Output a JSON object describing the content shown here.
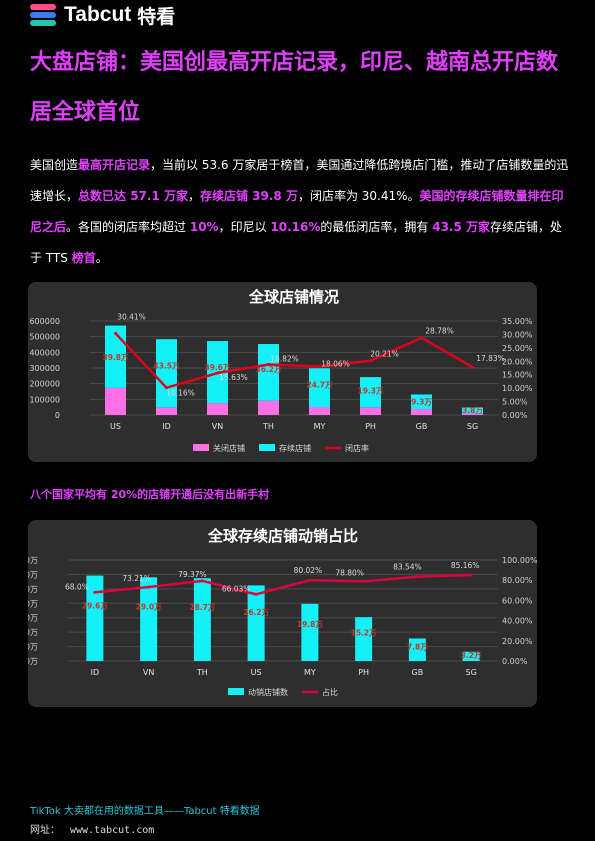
{
  "brand": {
    "name": "Tabcut",
    "cn": "特看",
    "colors": [
      "#ff4d8b",
      "#3d7cf0",
      "#22c7a9"
    ]
  },
  "headline": "大盘店铺：美国创最高开店记录，印尼、越南总开店数居全球首位",
  "intro": [
    {
      "t": "美国创造",
      "h": false
    },
    {
      "t": "最高开店记录",
      "h": true
    },
    {
      "t": "，当前以 53.6 万家居于榜首，美国通过降低跨境店门槛，推动了店铺数量的迅速增长，",
      "h": false
    },
    {
      "t": "总数已达 57.1 万家",
      "h": true
    },
    {
      "t": "，",
      "h": false
    },
    {
      "t": "存续店铺 39.8 万",
      "h": true
    },
    {
      "t": "，闭店率为 30.41%。",
      "h": false
    },
    {
      "t": "美国的存续店铺数量排在印尼之后",
      "h": true
    },
    {
      "t": "。各国的闭店率均超过 ",
      "h": false
    },
    {
      "t": "10%",
      "h": true
    },
    {
      "t": "，印尼以 ",
      "h": false
    },
    {
      "t": "10.16%",
      "h": true
    },
    {
      "t": "的最低闭店率，拥有 ",
      "h": false
    },
    {
      "t": "43.5 万家",
      "h": true
    },
    {
      "t": "存续店铺，处于 TTS ",
      "h": false
    },
    {
      "t": "榜首",
      "h": true
    },
    {
      "t": "。",
      "h": false
    }
  ],
  "subhead": "八个国家平均有 20%的店铺开通后没有出新手村",
  "footer": {
    "text": "TikTok 大卖都在用的数据工具——Tabcut 特看数据",
    "site_label": "网址：",
    "site_url": "www.tabcut.com"
  },
  "chart_data": [
    {
      "type": "bar",
      "title": "全球店铺情况",
      "categories": [
        "US",
        "ID",
        "VN",
        "TH",
        "MY",
        "PH",
        "GB",
        "SG"
      ],
      "series": [
        {
          "name": "关闭店铺",
          "kind": "stacked-bar",
          "color": "#ff6fe6",
          "values": [
            173000,
            49000,
            76000,
            91000,
            51000,
            49000,
            38000,
            10000
          ]
        },
        {
          "name": "存续店铺",
          "kind": "stacked-bar",
          "color": "#14f0f8",
          "values": [
            398000,
            435000,
            396000,
            362000,
            247000,
            193000,
            93000,
            38000
          ],
          "labels": [
            "39.8万",
            "43.5万",
            "39.6万",
            "36.2万",
            "24.7万",
            "19.3万",
            "9.3万",
            "3.8万"
          ]
        },
        {
          "name": "闭店率",
          "kind": "line",
          "color": "#e0001a",
          "axis": "right",
          "values": [
            30.41,
            10.16,
            15.63,
            18.82,
            18.06,
            20.21,
            28.78,
            17.83
          ],
          "labels": [
            "30.41%",
            "10.16%",
            "15.63%",
            "18.82%",
            "18.06%",
            "20.21%",
            "28.78%",
            "17.83%"
          ]
        }
      ],
      "y_left": {
        "ylim": [
          0,
          600000
        ],
        "ticks": [
          "0",
          "100000",
          "200000",
          "300000",
          "400000",
          "500000",
          "600000"
        ]
      },
      "y_right": {
        "ylim": [
          0,
          35
        ],
        "ticks": [
          "0.00%",
          "5.00%",
          "10.00%",
          "15.00%",
          "20.00%",
          "25.00%",
          "30.00%",
          "35.00%"
        ]
      },
      "legend": "bottom",
      "grid": true
    },
    {
      "type": "bar",
      "title": "全球存续店铺动销占比",
      "categories": [
        "ID",
        "VN",
        "TH",
        "US",
        "MY",
        "PH",
        "GB",
        "SG"
      ],
      "series": [
        {
          "name": "动销店铺数",
          "kind": "bar",
          "color": "#14f0f8",
          "values": [
            29.6,
            29.0,
            28.7,
            26.2,
            19.8,
            15.2,
            7.8,
            3.2
          ],
          "labels": [
            "29.6万",
            "29.0万",
            "28.7万",
            "26.2万",
            "19.8万",
            "15.2万",
            "7.8万",
            "3.2万"
          ]
        },
        {
          "name": "占比",
          "kind": "line",
          "color": "#e0003c",
          "axis": "right",
          "values": [
            68.0,
            73.21,
            79.37,
            66.03,
            80.02,
            78.8,
            83.54,
            85.16
          ],
          "labels": [
            "68.0%",
            "73.21%",
            "79.37%",
            "66.03%",
            "80.02%",
            "78.80%",
            "83.54%",
            "85.16%"
          ]
        }
      ],
      "y_left": {
        "ylim": [
          0,
          35
        ],
        "ticks": [
          "0.0万",
          "5.0万",
          "10.0万",
          "15.0万",
          "20.0万",
          "25.0万",
          "30.0万",
          "35.0万"
        ]
      },
      "y_right": {
        "ylim": [
          0,
          100
        ],
        "ticks": [
          "0.00%",
          "20.00%",
          "40.00%",
          "60.00%",
          "80.00%",
          "100.00%"
        ]
      },
      "legend": "bottom",
      "grid": true
    }
  ]
}
